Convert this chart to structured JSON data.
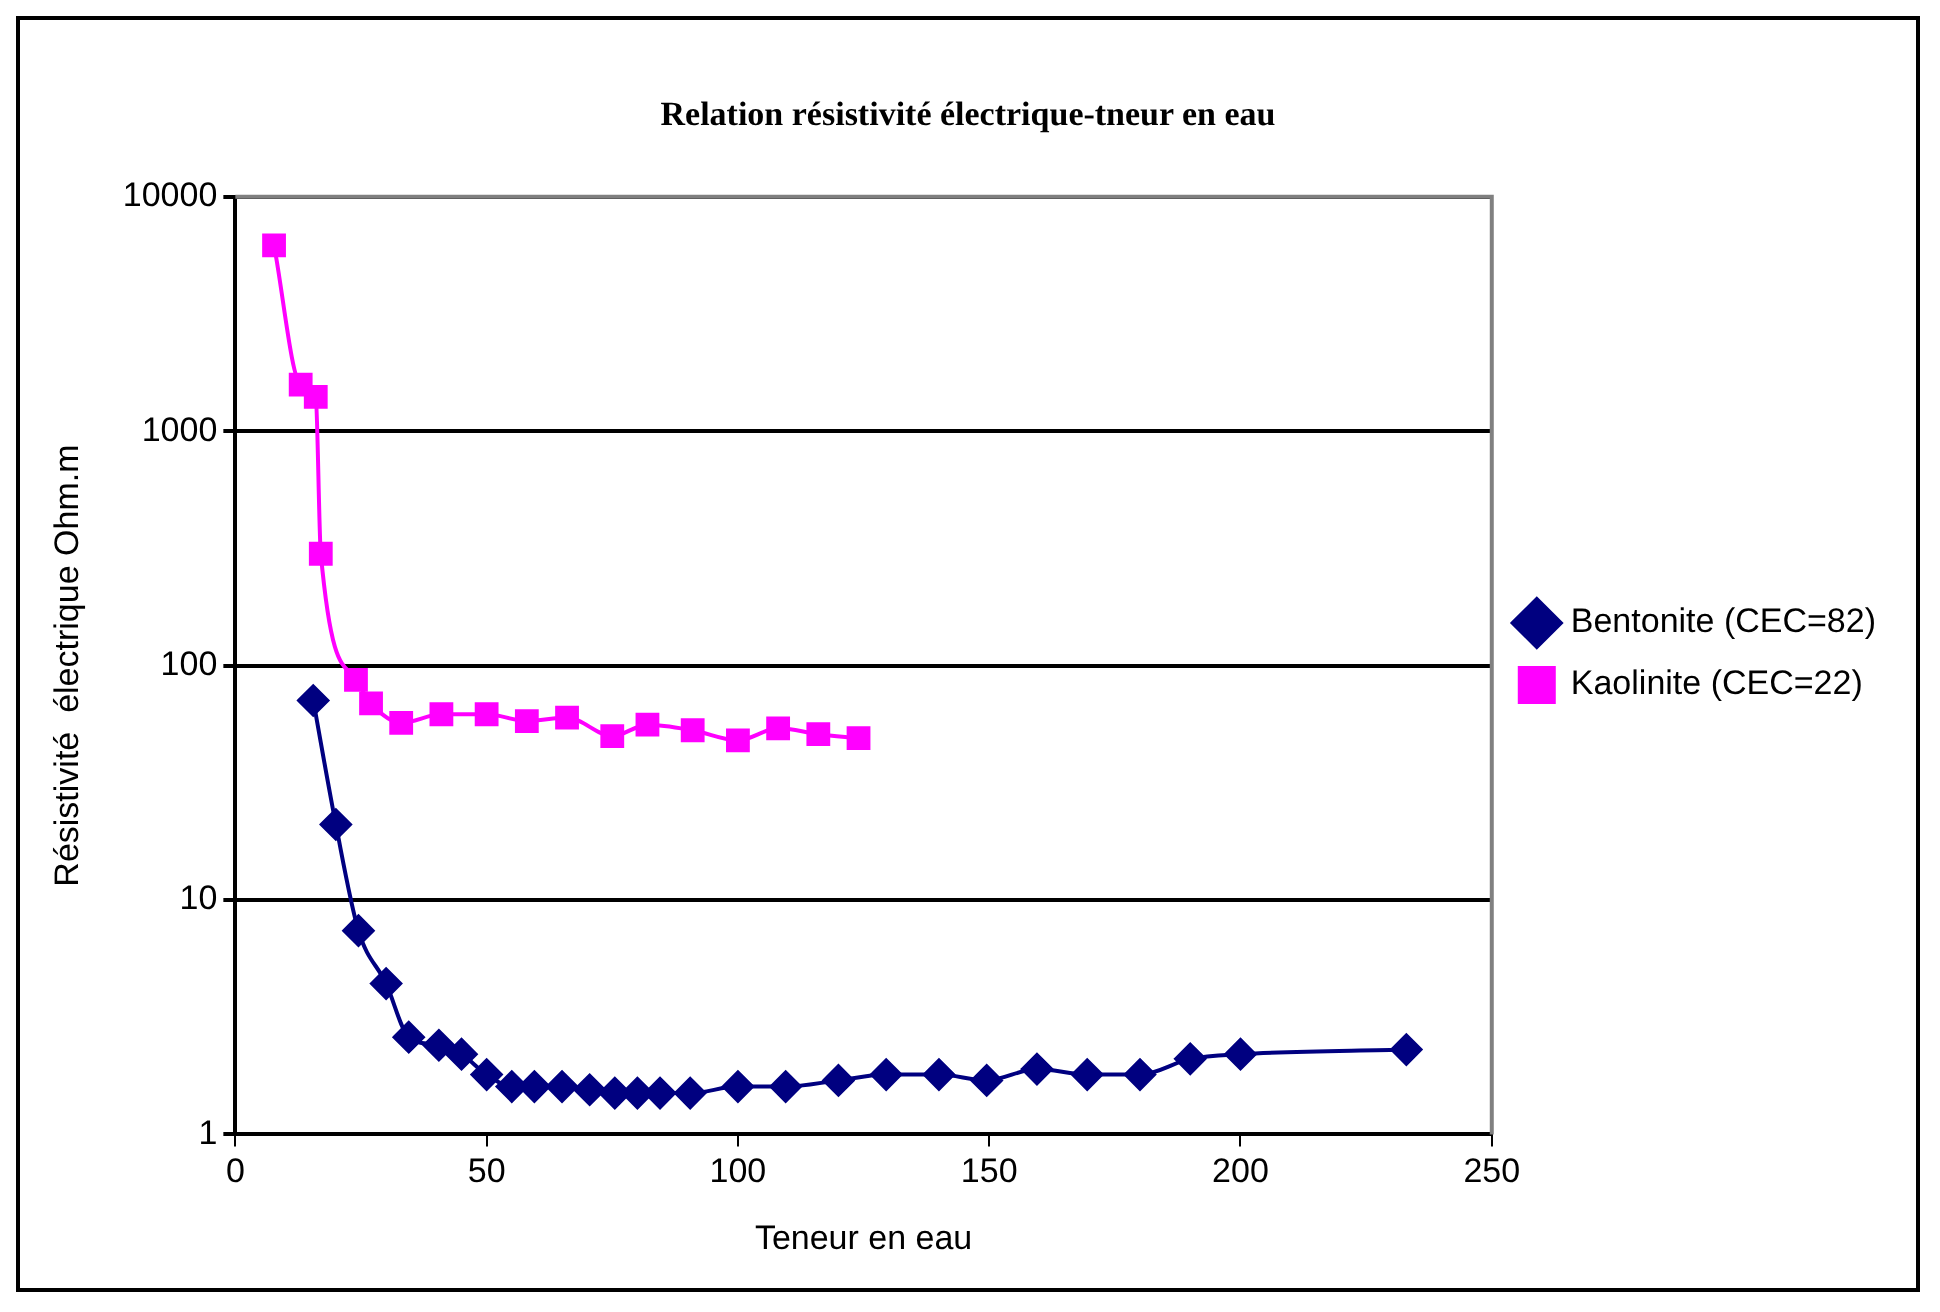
{
  "chart_data": {
    "type": "line",
    "title": "Relation résistivité électrique-tneur en eau",
    "xlabel": "Teneur en eau",
    "ylabel": "Résistivité  électrique Ohm.m",
    "log": "y",
    "grid": "y",
    "legend": "right",
    "line_style": "solid",
    "xlim": [
      0,
      250
    ],
    "xticks": [
      0,
      50,
      100,
      150,
      200,
      250
    ],
    "ylim": [
      1,
      10000
    ],
    "yticks": [
      1,
      10,
      100,
      1000,
      10000
    ],
    "series": [
      {
        "name": "Bentonite (CEC=82)",
        "color": "#000080",
        "marker": "diamond",
        "x": [
          15.5,
          20,
          24.5,
          30,
          34.5,
          40.5,
          45,
          50,
          55,
          59.5,
          65,
          70.5,
          75.5,
          80,
          84.5,
          90.5,
          100,
          109.5,
          120,
          129.5,
          140,
          149.5,
          159.5,
          169.5,
          180,
          190,
          200,
          233
        ],
        "values": [
          71,
          21,
          7.4,
          4.4,
          2.6,
          2.4,
          2.2,
          1.8,
          1.6,
          1.6,
          1.6,
          1.55,
          1.5,
          1.5,
          1.5,
          1.5,
          1.6,
          1.6,
          1.7,
          1.8,
          1.8,
          1.7,
          1.9,
          1.8,
          1.8,
          2.1,
          2.2,
          2.3
        ]
      },
      {
        "name": "Kaolinite (CEC=22)",
        "color": "#ff00ff",
        "marker": "square",
        "x": [
          7.7,
          13,
          16,
          17,
          24,
          27,
          33,
          41,
          50,
          58,
          66,
          75,
          82,
          91,
          100,
          108,
          116,
          124
        ],
        "values": [
          6200,
          1580,
          1400,
          300,
          87,
          69,
          57,
          62,
          62,
          58,
          60,
          50,
          56,
          53,
          48,
          54,
          51,
          49
        ]
      }
    ]
  }
}
